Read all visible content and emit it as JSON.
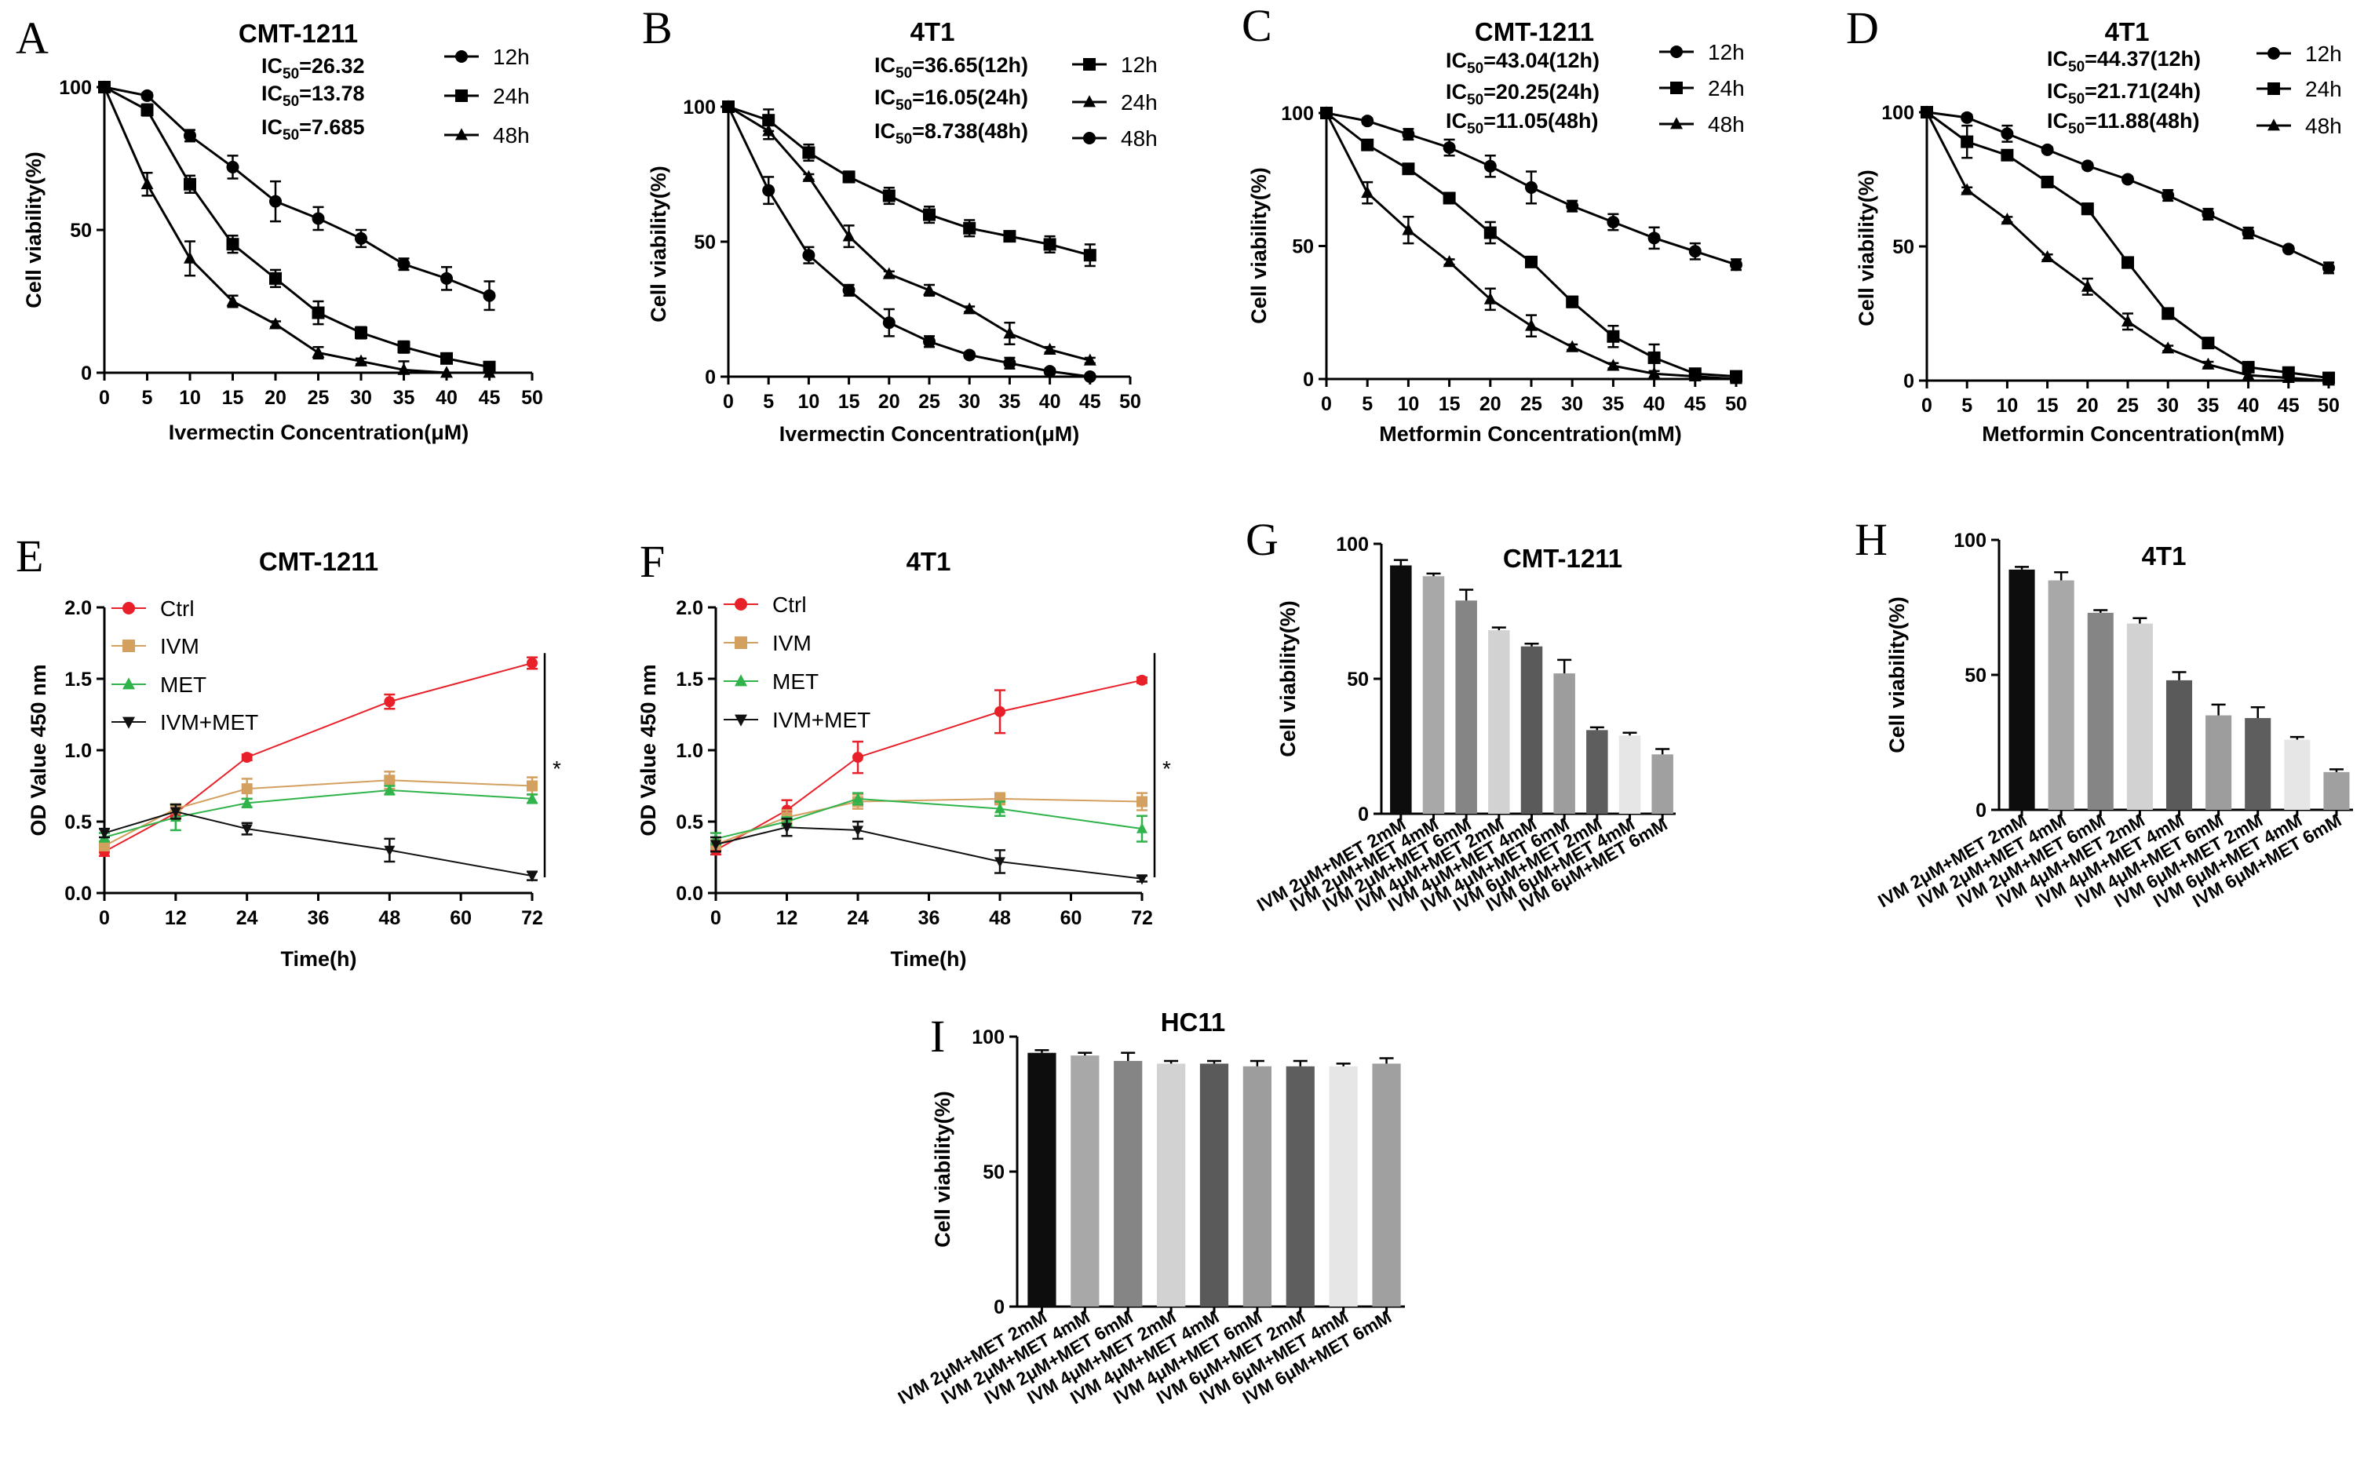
{
  "figure": {
    "panel_letters": [
      "A",
      "B",
      "C",
      "D",
      "E",
      "F",
      "G",
      "H",
      "I"
    ],
    "bar_category_labels": [
      "IVM 2μM+MET 2mM",
      "IVM 2μM+MET 4mM",
      "IVM 2μM+MET 6mM",
      "IVM 4μM+MET 2mM",
      "IVM 4μM+MET 4mM",
      "IVM 4μM+MET 6mM",
      "IVM 6μM+MET 2mM",
      "IVM 6μM+MET 4mM",
      "IVM 6μM+MET 6mM"
    ],
    "bar_category_labels_i": [
      "IVM 2μM+MET 2mM",
      "IVM 2μM+MET 4mM",
      "IVM 2μM+MET 6mM",
      "IVM 4μM+MET 2mM",
      "IVM 4μM+MET 4mM",
      "IVM 4μM+MET 6mM",
      "IVM 6μM+MET 2mM",
      "IVM 6μM+MET 4mM",
      "IVM 6μM+MET 6mM"
    ]
  },
  "colors": {
    "ctrl": "#e8202a",
    "ivm": "#d4a060",
    "met": "#2fb34a",
    "combo": "#111111",
    "bars": [
      "#0d0d0d",
      "#a8a8a8",
      "#858585",
      "#d2d2d2",
      "#5a5a5a",
      "#9d9d9d",
      "#5e5e5e",
      "#e6e6e6",
      "#a0a0a0"
    ]
  },
  "chart_data": [
    {
      "panel": "A",
      "type": "line",
      "title": "CMT-1211",
      "xlabel": "Ivermectin Concentration(μM)",
      "ylabel": "Cell viability(%)",
      "xlim": [
        0,
        50
      ],
      "ylim": [
        0,
        100
      ],
      "xticks": [
        "0",
        "5",
        "10",
        "15",
        "20",
        "25",
        "30",
        "35",
        "40",
        "45",
        "50"
      ],
      "yticks": [
        "0",
        "50",
        "100"
      ],
      "annotations": [
        "IC50=26.32",
        "IC50=13.78",
        "IC50=7.685"
      ],
      "x": [
        0,
        5,
        10,
        15,
        20,
        25,
        30,
        35,
        40,
        45
      ],
      "series": [
        {
          "name": "12h",
          "marker": "circle",
          "values": [
            100,
            97,
            83,
            72,
            60,
            54,
            47,
            38,
            33,
            27
          ],
          "errors": [
            0,
            1,
            2,
            4,
            7,
            4,
            3,
            2,
            4,
            5
          ]
        },
        {
          "name": "24h",
          "marker": "square",
          "values": [
            100,
            92,
            66,
            45,
            33,
            21,
            14,
            9,
            5,
            2
          ],
          "errors": [
            0,
            2,
            3,
            3,
            3,
            4,
            2,
            2,
            1,
            1
          ]
        },
        {
          "name": "48h",
          "marker": "triangle",
          "values": [
            100,
            66,
            40,
            25,
            17,
            7,
            4,
            1,
            0,
            0
          ],
          "errors": [
            0,
            4,
            6,
            2,
            1,
            2,
            1,
            3,
            0,
            0
          ]
        }
      ]
    },
    {
      "panel": "B",
      "type": "line",
      "title": "4T1",
      "xlabel": "Ivermectin Concentration(μM)",
      "ylabel": "Cell viability(%)",
      "xlim": [
        0,
        50
      ],
      "ylim": [
        0,
        100
      ],
      "xticks": [
        "0",
        "5",
        "10",
        "15",
        "20",
        "25",
        "30",
        "35",
        "40",
        "45",
        "50"
      ],
      "yticks": [
        "0",
        "50",
        "100"
      ],
      "annotations": [
        "IC50=36.65(12h)",
        "IC50=16.05(24h)",
        "IC50=8.738(48h)"
      ],
      "x": [
        0,
        5,
        10,
        15,
        20,
        25,
        30,
        35,
        40,
        45
      ],
      "series": [
        {
          "name": "12h",
          "marker": "square",
          "values": [
            100,
            95,
            83,
            74,
            67,
            60,
            55,
            52,
            49,
            45
          ],
          "errors": [
            0,
            4,
            3,
            2,
            3,
            3,
            3,
            1,
            3,
            4
          ]
        },
        {
          "name": "24h",
          "marker": "triangle",
          "values": [
            100,
            91,
            74,
            52,
            38,
            32,
            25,
            16,
            10,
            6
          ],
          "errors": [
            0,
            3,
            1,
            4,
            1,
            2,
            1,
            4,
            1,
            1
          ]
        },
        {
          "name": "48h",
          "marker": "circle",
          "values": [
            100,
            69,
            45,
            32,
            20,
            13,
            8,
            5,
            2,
            0
          ],
          "errors": [
            0,
            5,
            3,
            2,
            5,
            2,
            1,
            2,
            1,
            0
          ]
        }
      ]
    },
    {
      "panel": "C",
      "type": "line",
      "title": "CMT-1211",
      "xlabel": "Metformin Concentration(mM)",
      "ylabel": "Cell viability(%)",
      "xlim": [
        0,
        50
      ],
      "ylim": [
        0,
        100
      ],
      "xticks": [
        "0",
        "5",
        "10",
        "15",
        "20",
        "25",
        "30",
        "35",
        "40",
        "45",
        "50"
      ],
      "yticks": [
        "0",
        "50",
        "100"
      ],
      "annotations": [
        "IC50=43.04(12h)",
        "IC50=20.25(24h)",
        "IC50=11.05(48h)"
      ],
      "x": [
        0,
        5,
        10,
        15,
        20,
        25,
        30,
        35,
        40,
        45,
        50
      ],
      "series": [
        {
          "name": "12h",
          "marker": "circle",
          "values": [
            100,
            97,
            92,
            87,
            80,
            72,
            65,
            59,
            53,
            48,
            43
          ],
          "errors": [
            0,
            1,
            2,
            3,
            4,
            6,
            2,
            3,
            4,
            3,
            2
          ]
        },
        {
          "name": "24h",
          "marker": "square",
          "values": [
            100,
            88,
            79,
            68,
            55,
            44,
            29,
            16,
            8,
            2,
            1
          ],
          "errors": [
            0,
            1,
            1,
            1,
            4,
            1,
            2,
            4,
            5,
            1,
            1
          ]
        },
        {
          "name": "48h",
          "marker": "triangle",
          "values": [
            100,
            70,
            56,
            44,
            30,
            20,
            12,
            5,
            2,
            1,
            0
          ],
          "errors": [
            0,
            4,
            5,
            1,
            4,
            4,
            1,
            1,
            0,
            0,
            0
          ]
        }
      ]
    },
    {
      "panel": "D",
      "type": "line",
      "title": "4T1",
      "xlabel": "Metformin Concentration(mM)",
      "ylabel": "Cell viability(%)",
      "xlim": [
        0,
        50
      ],
      "ylim": [
        0,
        100
      ],
      "xticks": [
        "0",
        "5",
        "10",
        "15",
        "20",
        "25",
        "30",
        "35",
        "40",
        "45",
        "50"
      ],
      "yticks": [
        "0",
        "50",
        "100"
      ],
      "annotations": [
        "IC50=44.37(12h)",
        "IC50=21.71(24h)",
        "IC50=11.88(48h)"
      ],
      "x": [
        0,
        5,
        10,
        15,
        20,
        25,
        30,
        35,
        40,
        45,
        50
      ],
      "series": [
        {
          "name": "12h",
          "marker": "circle",
          "values": [
            100,
            98,
            92,
            86,
            80,
            75,
            69,
            62,
            55,
            49,
            42
          ],
          "errors": [
            0,
            1,
            3,
            1,
            1,
            1,
            2,
            2,
            2,
            1,
            2
          ]
        },
        {
          "name": "24h",
          "marker": "square",
          "values": [
            100,
            89,
            84,
            74,
            64,
            44,
            25,
            14,
            5,
            3,
            1
          ],
          "errors": [
            0,
            6,
            1,
            1,
            2,
            2,
            2,
            1,
            1,
            1,
            1
          ]
        },
        {
          "name": "48h",
          "marker": "triangle",
          "values": [
            100,
            71,
            60,
            46,
            35,
            22,
            12,
            6,
            2,
            1,
            0
          ],
          "errors": [
            0,
            1,
            1,
            1,
            3,
            3,
            1,
            1,
            0,
            0,
            0
          ]
        }
      ]
    },
    {
      "panel": "E",
      "type": "line",
      "title": "CMT-1211",
      "xlabel": "Time(h)",
      "ylabel": "OD Value 450 nm",
      "xlim": [
        0,
        72
      ],
      "ylim": [
        0,
        2.0
      ],
      "xticks": [
        "0",
        "12",
        "24",
        "36",
        "48",
        "60",
        "72"
      ],
      "yticks": [
        "0.0",
        "0.5",
        "1.0",
        "1.5",
        "2.0"
      ],
      "significance": "*",
      "x": [
        0,
        12,
        24,
        48,
        72
      ],
      "series": [
        {
          "name": "Ctrl",
          "marker": "circle",
          "values": [
            0.29,
            0.56,
            0.95,
            1.34,
            1.61
          ],
          "errors": [
            0.03,
            0.03,
            0.02,
            0.05,
            0.04
          ]
        },
        {
          "name": "IVM",
          "marker": "square",
          "values": [
            0.33,
            0.59,
            0.73,
            0.79,
            0.75
          ],
          "errors": [
            0.03,
            0.03,
            0.07,
            0.06,
            0.06
          ]
        },
        {
          "name": "MET",
          "marker": "triangle",
          "values": [
            0.39,
            0.53,
            0.63,
            0.72,
            0.66
          ],
          "errors": [
            0.03,
            0.09,
            0.03,
            0.03,
            0.03
          ]
        },
        {
          "name": "IVM+MET",
          "marker": "triangle-down",
          "values": [
            0.42,
            0.57,
            0.45,
            0.3,
            0.12
          ],
          "errors": [
            0.03,
            0.05,
            0.04,
            0.08,
            0.03
          ]
        }
      ]
    },
    {
      "panel": "F",
      "type": "line",
      "title": "4T1",
      "xlabel": "Time(h)",
      "ylabel": "OD Value 450 nm",
      "xlim": [
        0,
        72
      ],
      "ylim": [
        0,
        2.0
      ],
      "xticks": [
        "0",
        "12",
        "24",
        "36",
        "48",
        "60",
        "72"
      ],
      "yticks": [
        "0.0",
        "0.5",
        "1.0",
        "1.5",
        "2.0"
      ],
      "significance": "*",
      "x": [
        0,
        12,
        24,
        48,
        72
      ],
      "series": [
        {
          "name": "Ctrl",
          "marker": "circle",
          "values": [
            0.3,
            0.58,
            0.95,
            1.27,
            1.49
          ],
          "errors": [
            0.03,
            0.07,
            0.11,
            0.15,
            0.02
          ]
        },
        {
          "name": "IVM",
          "marker": "square",
          "values": [
            0.34,
            0.53,
            0.64,
            0.66,
            0.64
          ],
          "errors": [
            0.05,
            0.05,
            0.05,
            0.04,
            0.06
          ]
        },
        {
          "name": "MET",
          "marker": "triangle",
          "values": [
            0.38,
            0.5,
            0.66,
            0.59,
            0.45
          ],
          "errors": [
            0.04,
            0.03,
            0.04,
            0.05,
            0.09
          ]
        },
        {
          "name": "IVM+MET",
          "marker": "triangle-down",
          "values": [
            0.34,
            0.46,
            0.44,
            0.22,
            0.1
          ],
          "errors": [
            0.05,
            0.06,
            0.06,
            0.08,
            0.02
          ]
        }
      ]
    },
    {
      "panel": "G",
      "type": "bar",
      "title": "CMT-1211",
      "ylabel": "Cell viability(%)",
      "ylim": [
        0,
        100
      ],
      "yticks": [
        "0",
        "50",
        "100"
      ],
      "categories": [
        "IVM 2μM+MET 2mM",
        "IVM 2μM+MET 4mM",
        "IVM 2μM+MET 6mM",
        "IVM 4μM+MET 2mM",
        "IVM 4μM+MET 4mM",
        "IVM 4μM+MET 6mM",
        "IVM 6μM+MET 2mM",
        "IVM 6μM+MET 4mM",
        "IVM 6μM+MET 6mM"
      ],
      "values": [
        92,
        88,
        79,
        68,
        62,
        52,
        31,
        29,
        22
      ],
      "errors": [
        2,
        1,
        4,
        1,
        1,
        5,
        1,
        1,
        2
      ]
    },
    {
      "panel": "H",
      "type": "bar",
      "title": "4T1",
      "ylabel": "Cell viability(%)",
      "ylim": [
        0,
        100
      ],
      "yticks": [
        "0",
        "50",
        "100"
      ],
      "categories": [
        "IVM 2μM+MET 2mM",
        "IVM 2μM+MET 4mM",
        "IVM 2μM+MET 6mM",
        "IVM 4μM+MET 2mM",
        "IVM 4μM+MET 4mM",
        "IVM 4μM+MET 6mM",
        "IVM 6μM+MET 2mM",
        "IVM 6μM+MET 4mM",
        "IVM 6μM+MET 6mM"
      ],
      "values": [
        89,
        85,
        73,
        69,
        48,
        35,
        34,
        26,
        14
      ],
      "errors": [
        1,
        3,
        1,
        2,
        3,
        4,
        4,
        1,
        1
      ]
    },
    {
      "panel": "I",
      "type": "bar",
      "title": "HC11",
      "ylabel": "Cell viability(%)",
      "ylim": [
        0,
        100
      ],
      "yticks": [
        "0",
        "50",
        "100"
      ],
      "categories": [
        "IVM 2μM+MET 2mM",
        "IVM 2μM+MET 4mM",
        "IVM 2μM+MET 6mM",
        "IVM 4μM+MET 2mM",
        "IVM 4μM+MET 4mM",
        "IVM 4μM+MET 6mM",
        "IVM 6μM+MET 2mM",
        "IVM 6μM+MET 4mM",
        "IVM 6μM+MET 6mM"
      ],
      "values": [
        94,
        93,
        91,
        90,
        90,
        89,
        89,
        89,
        90
      ],
      "errors": [
        1,
        1,
        3,
        1,
        1,
        2,
        2,
        1,
        2
      ]
    }
  ]
}
